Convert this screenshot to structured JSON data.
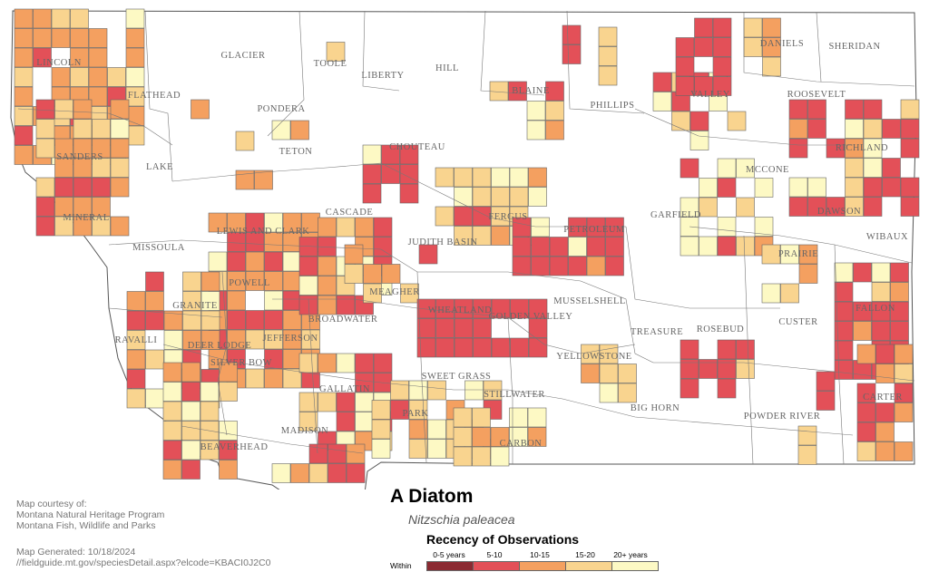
{
  "title": "A Diatom",
  "scientific_name": "Nitzschia paleacea",
  "legend": {
    "title": "Recency of Observations",
    "prefix": "Within",
    "items": [
      {
        "label": "0-5 years",
        "color": "#8b2a32"
      },
      {
        "label": "5-10",
        "color": "#e35058"
      },
      {
        "label": "10-15",
        "color": "#f4a060"
      },
      {
        "label": "15-20",
        "color": "#f9d48f"
      },
      {
        "label": "20+ years",
        "color": "#fdf9c4"
      }
    ]
  },
  "credits": {
    "line1": "Map courtesy of:",
    "line2": "Montana Natural Heritage Program",
    "line3": "Montana Fish, Wildlife and Parks",
    "generated": "Map Generated: 10/18/2024",
    "url": "//fieldguide.mt.gov/speciesDetail.aspx?elcode=KBACI0J2C0"
  },
  "counties": [
    "LINCOLN",
    "FLATHEAD",
    "GLACIER",
    "TOOLE",
    "LIBERTY",
    "HILL",
    "BLAINE",
    "PHILLIPS",
    "VALLEY",
    "DANIELS",
    "SHERIDAN",
    "ROOSEVELT",
    "PONDERA",
    "TETON",
    "CHOUTEAU",
    "SANDERS",
    "LAKE",
    "RICHLAND",
    "MCCONE",
    "GARFIELD",
    "DAWSON",
    "WIBAUX",
    "MINERAL",
    "MISSOULA",
    "LEWIS AND CLARK",
    "CASCADE",
    "JUDITH BASIN",
    "FERGUS",
    "PETROLEUM",
    "PRAIRIE",
    "POWELL",
    "MEAGHER",
    "MUSSELSHELL",
    "WHEATLAND",
    "GOLDEN VALLEY",
    "GRANITE",
    "BROADWATER",
    "JEFFERSON",
    "DEER LODGE",
    "SILVER BOW",
    "RAVALLI",
    "SWEET GRASS",
    "STILLWATER",
    "YELLOWSTONE",
    "TREASURE",
    "ROSEBUD",
    "CUSTER",
    "FALLON",
    "CARTER",
    "GALLATIN",
    "PARK",
    "BIG HORN",
    "POWDER RIVER",
    "MADISON",
    "BEAVERHEAD",
    "CARBON"
  ],
  "grid_observations": {
    "palette": [
      "#8b2a32",
      "#e35058",
      "#f4a060",
      "#f9d48f",
      "#fdf9c4"
    ]
  }
}
